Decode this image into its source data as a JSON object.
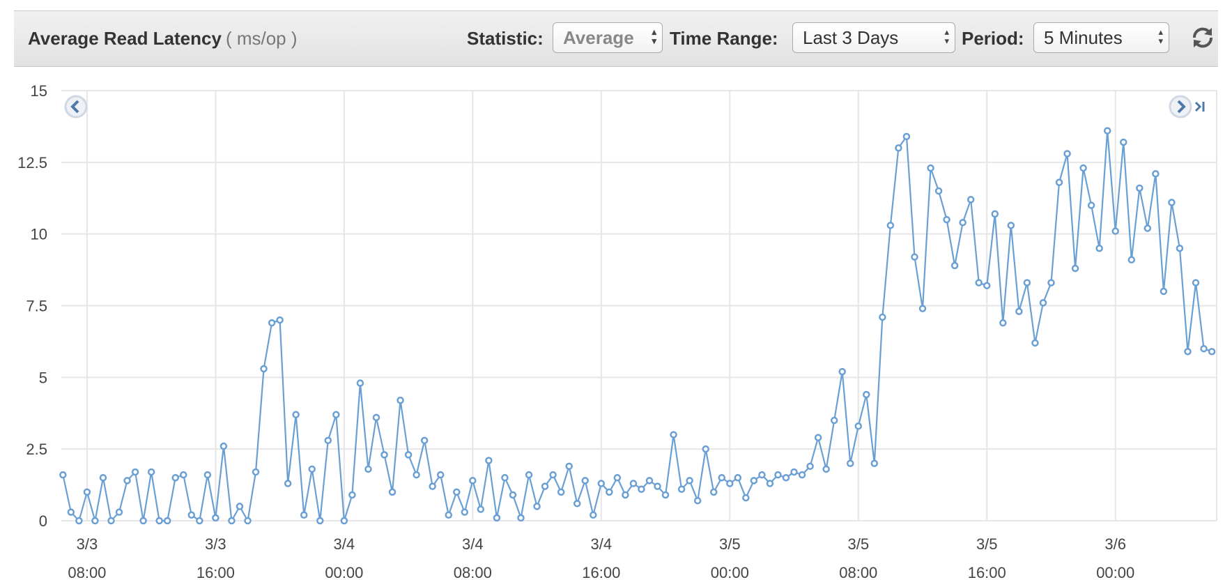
{
  "header": {
    "title": "Average Read Latency",
    "unit": "( ms/op )",
    "controls": [
      {
        "label": "Statistic:",
        "value": "Average"
      },
      {
        "label": "Time Range:",
        "value": "Last 3 Days"
      },
      {
        "label": "Period:",
        "value": "5 Minutes"
      }
    ]
  },
  "chart_data": {
    "type": "line",
    "color": "#6a9fd4",
    "grid": true,
    "x": [
      6.5,
      7,
      7.5,
      8,
      8.5,
      9,
      9.5,
      10,
      10.5,
      11,
      11.5,
      12,
      12.5,
      13,
      13.5,
      14,
      14.5,
      15,
      15.5,
      16,
      16.5,
      17,
      17.5,
      18,
      18.5,
      19,
      19.5,
      20,
      20.5,
      21,
      21.5,
      22,
      22.5,
      23,
      23.5,
      24,
      24.5,
      25,
      25.5,
      26,
      26.5,
      27,
      27.5,
      28,
      28.5,
      29,
      29.5,
      30,
      30.5,
      31,
      31.5,
      32,
      32.5,
      33,
      33.5,
      34,
      34.5,
      35,
      35.5,
      36,
      36.5,
      37,
      37.5,
      38,
      38.5,
      39,
      39.5,
      40,
      40.5,
      41,
      41.5,
      42,
      42.5,
      43,
      43.5,
      44,
      44.5,
      45,
      45.5,
      46,
      46.5,
      47,
      47.5,
      48,
      48.5,
      49,
      49.5,
      50,
      50.5,
      51,
      51.5,
      52,
      52.5,
      53,
      53.5,
      54,
      54.5,
      55,
      55.5,
      56,
      56.5,
      57,
      57.5,
      58,
      58.5,
      59,
      59.5,
      60,
      60.5,
      61,
      61.5,
      62,
      62.5,
      63,
      63.5,
      64,
      64.5,
      65,
      65.5,
      66,
      66.5,
      67,
      67.5,
      68,
      68.5,
      69,
      69.5,
      70,
      70.5,
      71,
      71.5,
      72,
      72.5,
      73,
      73.5,
      74,
      74.5,
      75,
      75.5,
      76,
      76.5,
      77,
      77.5,
      78
    ],
    "values": [
      1.6,
      0.3,
      0,
      1.0,
      0,
      1.5,
      0,
      0.3,
      1.4,
      1.7,
      0,
      1.7,
      0,
      0,
      1.5,
      1.6,
      0.2,
      0,
      1.6,
      0.1,
      2.6,
      0,
      0.5,
      0,
      1.7,
      5.3,
      6.9,
      7.0,
      1.3,
      3.7,
      0.2,
      1.8,
      0,
      2.8,
      3.7,
      0,
      0.9,
      4.8,
      1.8,
      3.6,
      2.3,
      1.0,
      4.2,
      2.3,
      1.6,
      2.8,
      1.2,
      1.6,
      0.2,
      1.0,
      0.3,
      1.4,
      0.4,
      2.1,
      0.1,
      1.5,
      0.9,
      0.1,
      1.6,
      0.5,
      1.2,
      1.6,
      1.0,
      1.9,
      0.6,
      1.4,
      0.2,
      1.3,
      1.0,
      1.5,
      0.9,
      1.3,
      1.1,
      1.4,
      1.2,
      0.9,
      3.0,
      1.1,
      1.4,
      0.7,
      2.5,
      1.0,
      1.5,
      1.3,
      1.5,
      0.8,
      1.4,
      1.6,
      1.3,
      1.6,
      1.5,
      1.7,
      1.6,
      1.9,
      2.9,
      1.8,
      3.5,
      5.2,
      2.0,
      3.3,
      4.4,
      2.0,
      7.1,
      10.3,
      13.0,
      13.4,
      9.2,
      7.4,
      12.3,
      11.5,
      10.5,
      8.9,
      10.4,
      11.2,
      8.3,
      8.2,
      10.7,
      6.9,
      10.3,
      7.3,
      8.3,
      6.2,
      7.6,
      8.3,
      11.8,
      12.8,
      8.8,
      12.3,
      11.0,
      9.5,
      13.6,
      10.1,
      13.2,
      9.1,
      11.6,
      10.2,
      12.1,
      8.0,
      11.1,
      9.5,
      5.9,
      8.3,
      6.0,
      5.9
    ],
    "xlim": [
      6.4,
      78.3
    ],
    "xticks": [
      {
        "value": 8,
        "label": [
          "3/3",
          "08:00"
        ]
      },
      {
        "value": 16,
        "label": [
          "3/3",
          "16:00"
        ]
      },
      {
        "value": 24,
        "label": [
          "3/4",
          "00:00"
        ]
      },
      {
        "value": 32,
        "label": [
          "3/4",
          "08:00"
        ]
      },
      {
        "value": 40,
        "label": [
          "3/4",
          "16:00"
        ]
      },
      {
        "value": 48,
        "label": [
          "3/5",
          "00:00"
        ]
      },
      {
        "value": 56,
        "label": [
          "3/5",
          "08:00"
        ]
      },
      {
        "value": 64,
        "label": [
          "3/5",
          "16:00"
        ]
      },
      {
        "value": 72,
        "label": [
          "3/6",
          "00:00"
        ]
      }
    ],
    "ylim": [
      0,
      15
    ],
    "yticks": [
      0,
      2.5,
      5,
      7.5,
      10,
      12.5,
      15
    ]
  }
}
